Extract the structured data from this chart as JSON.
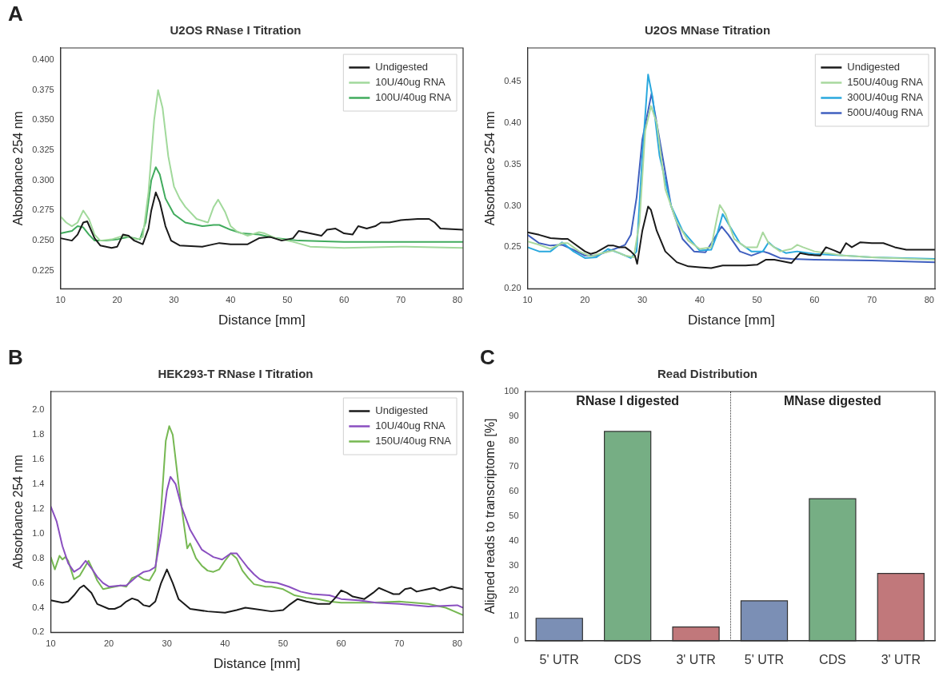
{
  "chart_data": [
    {
      "type": "line",
      "title": "U2OS RNase I Titration",
      "xlabel": "Distance [mm]",
      "ylabel": "Absorbance 254 nm",
      "annotations": [
        "A"
      ],
      "legend": "top right",
      "grid": false,
      "xlim": [
        10,
        81
      ],
      "xticks": [
        10,
        20,
        30,
        40,
        50,
        60,
        70,
        80
      ],
      "ylim": [
        0.21,
        0.41
      ],
      "yticks": [
        0.225,
        {
          "value": 0.25,
          "label": "0.250"
        },
        0.275,
        {
          "value": 0.3,
          "label": "0.300"
        },
        0.325,
        {
          "value": 0.35,
          "label": "0.350"
        },
        0.375,
        {
          "value": 0.4,
          "label": "0.400"
        }
      ],
      "series": [
        {
          "name": "Undigested",
          "color": "#1a1a1a",
          "x": [
            10,
            12,
            13,
            14,
            14.7,
            16,
            17,
            19,
            20,
            21,
            22,
            23,
            24.5,
            25.5,
            26,
            26.8,
            27.5,
            28.5,
            29.5,
            31,
            35,
            37,
            38,
            40,
            43,
            45,
            47,
            49,
            51,
            52,
            54,
            56,
            57,
            58.5,
            60,
            61.5,
            62.5,
            64,
            65.5,
            66.5,
            68,
            70,
            73,
            75,
            76,
            77,
            81
          ],
          "values": [
            0.252,
            0.25,
            0.255,
            0.265,
            0.266,
            0.252,
            0.246,
            0.244,
            0.245,
            0.255,
            0.254,
            0.25,
            0.247,
            0.26,
            0.275,
            0.29,
            0.282,
            0.262,
            0.25,
            0.246,
            0.245,
            0.247,
            0.248,
            0.247,
            0.247,
            0.252,
            0.253,
            0.25,
            0.252,
            0.258,
            0.256,
            0.254,
            0.259,
            0.26,
            0.256,
            0.255,
            0.262,
            0.26,
            0.262,
            0.265,
            0.265,
            0.267,
            0.268,
            0.268,
            0.265,
            0.26,
            0.259
          ]
        },
        {
          "name": "10U/40ug RNA",
          "color": "#a1d99b",
          "x": [
            10,
            11,
            12,
            13,
            14,
            15,
            16,
            17,
            19,
            21,
            22,
            23.5,
            24.5,
            25.5,
            26.5,
            27.2,
            28,
            29,
            30,
            31,
            32,
            34,
            36,
            37,
            37.8,
            39,
            40,
            41,
            43,
            45,
            46,
            48,
            51,
            54,
            60,
            70,
            81
          ],
          "values": [
            0.27,
            0.265,
            0.262,
            0.265,
            0.275,
            0.268,
            0.255,
            0.25,
            0.251,
            0.254,
            0.253,
            0.251,
            0.253,
            0.29,
            0.35,
            0.375,
            0.36,
            0.32,
            0.295,
            0.285,
            0.278,
            0.268,
            0.265,
            0.278,
            0.284,
            0.274,
            0.262,
            0.258,
            0.254,
            0.257,
            0.256,
            0.252,
            0.249,
            0.245,
            0.244,
            0.245,
            0.244
          ]
        },
        {
          "name": "100U/40ug RNA",
          "color": "#41ab5d",
          "x": [
            10,
            12,
            13,
            14,
            15,
            16,
            18,
            20,
            22,
            24,
            25,
            26,
            26.8,
            27.5,
            28.5,
            30,
            32,
            35,
            37,
            38,
            40,
            42,
            45,
            48,
            52,
            60,
            70,
            81
          ],
          "values": [
            0.256,
            0.258,
            0.262,
            0.261,
            0.255,
            0.25,
            0.25,
            0.251,
            0.253,
            0.251,
            0.265,
            0.3,
            0.311,
            0.305,
            0.285,
            0.272,
            0.265,
            0.262,
            0.263,
            0.263,
            0.259,
            0.256,
            0.255,
            0.252,
            0.25,
            0.249,
            0.249,
            0.249
          ]
        }
      ]
    },
    {
      "type": "line",
      "title": "U2OS MNase Titration",
      "xlabel": "Distance [mm]",
      "ylabel": "Absorbance 254 nm",
      "legend": "top right",
      "grid": false,
      "xlim": [
        10,
        81
      ],
      "xticks": [
        10,
        20,
        30,
        40,
        50,
        60,
        70,
        80
      ],
      "ylim": [
        0.2,
        0.49
      ],
      "yticks": [
        {
          "value": 0.2,
          "label": "0.20"
        },
        0.25,
        {
          "value": 0.3,
          "label": "0.30"
        },
        0.35,
        {
          "value": 0.4,
          "label": "0.40"
        },
        0.45
      ],
      "series": [
        {
          "name": "Undigested",
          "color": "#1a1a1a",
          "x": [
            10,
            12,
            14,
            16,
            17,
            18,
            20,
            21,
            22,
            24,
            25,
            26,
            27,
            28,
            28.7,
            29.1,
            30,
            31,
            31.5,
            32.5,
            34,
            36,
            38,
            40,
            42,
            44,
            46,
            48,
            50,
            51.5,
            53,
            56,
            57.5,
            59,
            61,
            62,
            63.5,
            64.5,
            65.5,
            66.5,
            68,
            70,
            72,
            74,
            76,
            81
          ],
          "values": [
            0.268,
            0.265,
            0.261,
            0.26,
            0.26,
            0.255,
            0.245,
            0.242,
            0.244,
            0.252,
            0.252,
            0.25,
            0.25,
            0.245,
            0.24,
            0.23,
            0.27,
            0.299,
            0.295,
            0.27,
            0.245,
            0.232,
            0.227,
            0.226,
            0.225,
            0.228,
            0.228,
            0.228,
            0.229,
            0.235,
            0.235,
            0.231,
            0.243,
            0.241,
            0.24,
            0.25,
            0.246,
            0.243,
            0.255,
            0.25,
            0.256,
            0.255,
            0.255,
            0.25,
            0.247,
            0.247
          ]
        },
        {
          "name": "150U/40ug RNA",
          "color": "#a8d89e",
          "x": [
            10,
            12,
            14,
            16,
            17,
            19,
            21,
            23,
            25,
            27,
            28.5,
            29.5,
            30.5,
            31.5,
            32.5,
            34,
            36,
            38,
            40,
            42,
            43,
            43.5,
            44.5,
            46,
            48,
            50,
            51,
            52,
            54,
            56,
            57,
            58,
            60,
            65,
            70,
            81
          ],
          "values": [
            0.257,
            0.253,
            0.248,
            0.255,
            0.255,
            0.245,
            0.239,
            0.243,
            0.246,
            0.24,
            0.238,
            0.28,
            0.39,
            0.42,
            0.4,
            0.32,
            0.28,
            0.258,
            0.248,
            0.25,
            0.285,
            0.301,
            0.29,
            0.26,
            0.25,
            0.25,
            0.268,
            0.255,
            0.245,
            0.248,
            0.253,
            0.25,
            0.245,
            0.24,
            0.238,
            0.235
          ]
        },
        {
          "name": "300U/40ug RNA",
          "color": "#29a8de",
          "x": [
            10,
            12,
            14,
            16,
            18,
            20,
            22,
            24,
            26,
            28,
            29,
            30,
            31,
            31.8,
            33,
            35,
            37,
            40,
            42,
            43,
            44,
            45,
            47,
            49,
            51,
            52,
            53,
            55,
            57,
            60,
            65,
            70,
            81
          ],
          "values": [
            0.25,
            0.245,
            0.245,
            0.256,
            0.245,
            0.237,
            0.238,
            0.248,
            0.243,
            0.237,
            0.245,
            0.36,
            0.458,
            0.43,
            0.36,
            0.3,
            0.27,
            0.246,
            0.247,
            0.265,
            0.29,
            0.278,
            0.255,
            0.245,
            0.245,
            0.256,
            0.25,
            0.243,
            0.245,
            0.242,
            0.24,
            0.238,
            0.236
          ]
        },
        {
          "name": "500U/40ug RNA",
          "color": "#3f5fbf",
          "x": [
            10,
            12,
            14,
            16,
            18,
            20,
            22,
            24,
            26,
            27,
            28,
            29,
            30,
            31.6,
            33,
            35,
            37,
            39,
            41,
            42.5,
            43.8,
            45,
            47,
            49,
            51,
            52,
            54,
            56,
            60,
            70,
            81
          ],
          "values": [
            0.265,
            0.255,
            0.252,
            0.253,
            0.247,
            0.24,
            0.24,
            0.245,
            0.25,
            0.253,
            0.265,
            0.31,
            0.38,
            0.435,
            0.38,
            0.3,
            0.26,
            0.245,
            0.244,
            0.26,
            0.275,
            0.265,
            0.245,
            0.24,
            0.245,
            0.243,
            0.237,
            0.236,
            0.235,
            0.234,
            0.232
          ]
        }
      ]
    },
    {
      "type": "line",
      "title": "HEK293-T RNase I Titration",
      "xlabel": "Distance [mm]",
      "ylabel": "Absorbance 254 nm",
      "annotations": [
        "B"
      ],
      "legend": "top right",
      "grid": false,
      "xlim": [
        10,
        81
      ],
      "xticks": [
        10,
        20,
        30,
        40,
        50,
        60,
        70,
        80
      ],
      "ylim": [
        0.2,
        2.15
      ],
      "yticks": [
        0.2,
        0.4,
        0.6,
        0.8,
        {
          "value": 1,
          "label": "1.0"
        },
        1.2,
        1.4,
        1.6,
        1.8,
        {
          "value": 2,
          "label": "2.0"
        }
      ],
      "series": [
        {
          "name": "Undigested",
          "color": "#1a1a1a",
          "x": [
            10,
            11,
            12,
            13,
            14,
            15,
            15.7,
            17,
            18,
            20,
            21,
            22,
            23,
            24,
            25,
            26,
            27,
            28,
            29,
            30,
            31,
            32,
            34,
            37,
            40,
            42,
            43.5,
            45,
            48,
            50,
            51,
            52.5,
            54,
            56,
            58,
            59,
            60,
            61,
            62,
            64,
            65.5,
            66.5,
            68,
            69,
            70,
            71,
            72,
            73,
            75,
            76,
            77,
            79,
            80,
            81
          ],
          "values": [
            0.46,
            0.45,
            0.44,
            0.45,
            0.5,
            0.56,
            0.58,
            0.52,
            0.43,
            0.39,
            0.39,
            0.41,
            0.45,
            0.475,
            0.46,
            0.42,
            0.41,
            0.45,
            0.6,
            0.71,
            0.6,
            0.47,
            0.39,
            0.37,
            0.36,
            0.38,
            0.4,
            0.39,
            0.37,
            0.38,
            0.42,
            0.47,
            0.45,
            0.43,
            0.43,
            0.48,
            0.54,
            0.52,
            0.49,
            0.47,
            0.52,
            0.56,
            0.53,
            0.51,
            0.51,
            0.55,
            0.56,
            0.53,
            0.55,
            0.56,
            0.54,
            0.57,
            0.56,
            0.55
          ]
        },
        {
          "name": "10U/40ug RNA",
          "color": "#8a4fc0",
          "x": [
            10,
            11,
            12,
            13,
            14,
            15,
            16,
            17,
            18,
            19,
            20,
            22,
            23,
            24,
            25,
            26,
            27,
            28,
            29,
            30,
            30.6,
            31.5,
            32.5,
            34,
            35,
            36,
            37,
            38,
            39.5,
            41,
            42,
            43,
            44,
            45,
            46,
            47,
            49,
            51,
            53,
            55,
            58,
            60,
            63,
            66,
            70,
            75,
            80,
            81
          ],
          "values": [
            1.22,
            1.1,
            0.9,
            0.76,
            0.69,
            0.72,
            0.78,
            0.72,
            0.65,
            0.6,
            0.57,
            0.58,
            0.58,
            0.62,
            0.66,
            0.69,
            0.7,
            0.73,
            1.0,
            1.35,
            1.46,
            1.4,
            1.22,
            1.03,
            0.95,
            0.87,
            0.84,
            0.81,
            0.79,
            0.84,
            0.84,
            0.78,
            0.72,
            0.67,
            0.63,
            0.61,
            0.6,
            0.57,
            0.53,
            0.51,
            0.5,
            0.47,
            0.46,
            0.44,
            0.43,
            0.41,
            0.42,
            0.4
          ]
        },
        {
          "name": "150U/40ug RNA",
          "color": "#76b852",
          "x": [
            10,
            10.7,
            11.5,
            12,
            12.5,
            13,
            14,
            15,
            16.5,
            17,
            18,
            19,
            20,
            22,
            23,
            24,
            25,
            26,
            27,
            28,
            29,
            29.8,
            30.4,
            31,
            32,
            33,
            33.5,
            34,
            35,
            36,
            37,
            38,
            39,
            40,
            41,
            42,
            43,
            44,
            45,
            47,
            48,
            50,
            52,
            54,
            56,
            58,
            60,
            65,
            70,
            75,
            78,
            81
          ],
          "values": [
            0.81,
            0.71,
            0.82,
            0.79,
            0.81,
            0.78,
            0.63,
            0.66,
            0.78,
            0.73,
            0.62,
            0.55,
            0.56,
            0.58,
            0.57,
            0.64,
            0.66,
            0.63,
            0.62,
            0.7,
            1.2,
            1.75,
            1.87,
            1.8,
            1.4,
            1.05,
            0.88,
            0.92,
            0.8,
            0.74,
            0.7,
            0.69,
            0.71,
            0.78,
            0.84,
            0.8,
            0.7,
            0.64,
            0.59,
            0.57,
            0.57,
            0.55,
            0.5,
            0.48,
            0.47,
            0.45,
            0.44,
            0.44,
            0.45,
            0.43,
            0.4,
            0.34
          ]
        }
      ]
    },
    {
      "type": "bar",
      "title": "Read Distribution",
      "ylabel": "Aligned reads to transcriptome [%]",
      "annotations": [
        "C",
        "RNase I digested",
        "MNase digested"
      ],
      "grid": false,
      "ylim": [
        0,
        100
      ],
      "yticks": [
        0,
        10,
        20,
        30,
        40,
        50,
        60,
        70,
        80,
        90,
        100
      ],
      "categories": [
        "5' UTR",
        "CDS",
        "3' UTR",
        "5' UTR",
        "CDS",
        "3' UTR"
      ],
      "values": [
        9,
        84,
        5.5,
        16,
        57,
        27
      ],
      "colors": [
        "#7b8fb5",
        "#76ae84",
        "#c1787b",
        "#7b8fb5",
        "#76ae84",
        "#c1787b"
      ]
    }
  ]
}
